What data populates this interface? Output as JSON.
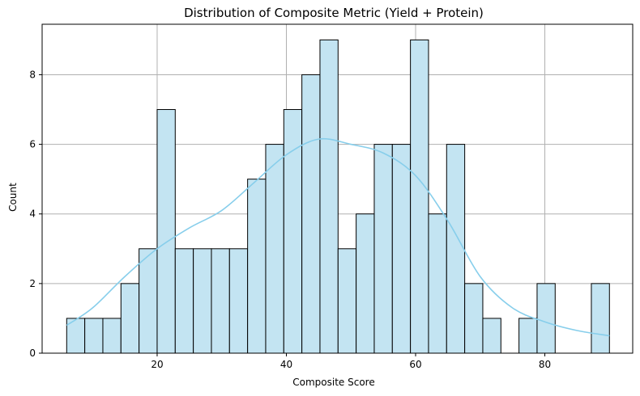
{
  "chart_data": {
    "type": "bar",
    "title": "Distribution of Composite Metric (Yield + Protein)",
    "xlabel": "Composite Score",
    "ylabel": "Count",
    "xlim": [
      2.2,
      93.6
    ],
    "ylim": [
      0,
      9.45
    ],
    "grid": true,
    "x_ticks": [
      20,
      40,
      60,
      80
    ],
    "y_ticks": [
      0,
      2,
      4,
      6,
      8
    ],
    "bin_edges": [
      6.0,
      8.8,
      11.6,
      14.4,
      17.2,
      20.0,
      22.8,
      25.6,
      28.4,
      31.2,
      34.0,
      36.8,
      39.6,
      42.4,
      45.2,
      48.0,
      50.8,
      53.6,
      56.4,
      59.2,
      62.0,
      64.8,
      67.6,
      70.4,
      73.2,
      76.0,
      78.8,
      81.6,
      84.4,
      87.2,
      90.0
    ],
    "counts": [
      1,
      1,
      1,
      2,
      3,
      7,
      3,
      3,
      3,
      3,
      5,
      6,
      7,
      8,
      9,
      3,
      4,
      6,
      6,
      9,
      4,
      6,
      2,
      1,
      0,
      1,
      2,
      0,
      0,
      2
    ],
    "kde": {
      "x": [
        6,
        10,
        15,
        20,
        25,
        30,
        35,
        40,
        45,
        50,
        55,
        60,
        65,
        70,
        75,
        80,
        85,
        90
      ],
      "y": [
        0.8,
        1.3,
        2.2,
        3.0,
        3.6,
        4.1,
        4.9,
        5.7,
        6.15,
        6.0,
        5.75,
        5.1,
        3.8,
        2.2,
        1.3,
        0.9,
        0.65,
        0.5
      ]
    },
    "colors": {
      "bar_fill": "#c3e4f2",
      "bar_edge": "#000000",
      "kde_line": "#87ceeb",
      "grid": "#b0b0b0"
    }
  }
}
